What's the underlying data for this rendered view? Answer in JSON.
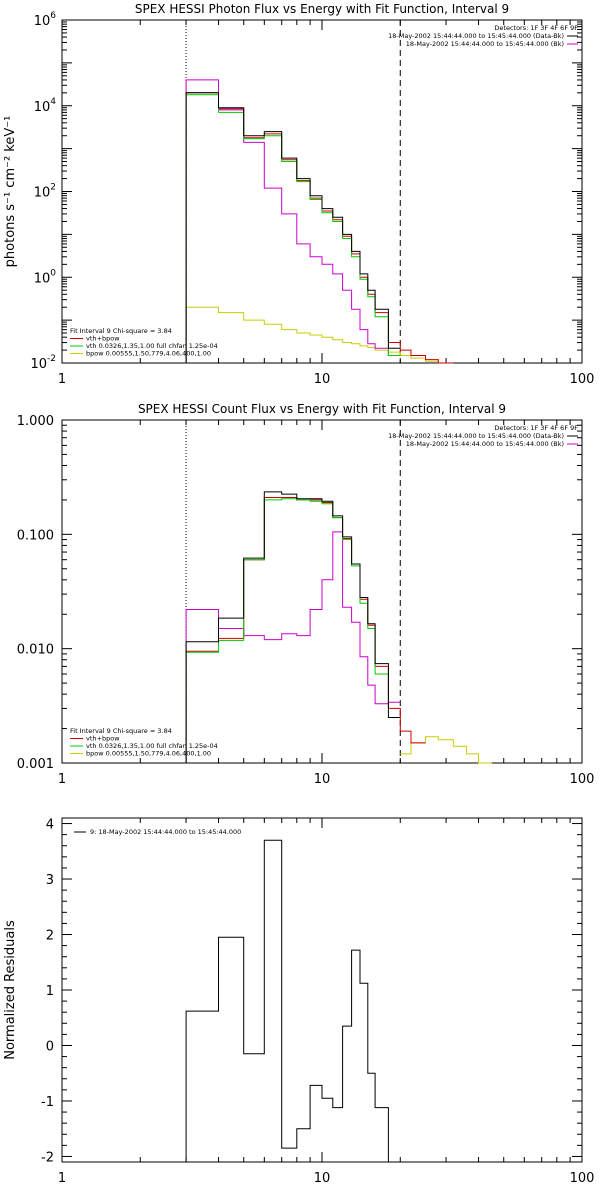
{
  "colors": {
    "background": "#ffffff",
    "axes": "#000000",
    "data": "#000000",
    "total_fit": "#cc0000",
    "vth": "#00cc00",
    "bpow": "#cccc00",
    "background_spectrum": "#cc00cc"
  },
  "chart_data": [
    {
      "type": "line",
      "step": true,
      "xscale": "log",
      "yscale": "log",
      "title": "SPEX HESSI Photon Flux vs Energy with Fit Function, Interval 9",
      "xlabel": "",
      "ylabel": "photons s⁻¹ cm⁻² keV⁻¹",
      "xlim": [
        1,
        100
      ],
      "ylim": [
        0.01,
        1000000
      ],
      "xticks": [
        1,
        10,
        100
      ],
      "yticks": [
        {
          "v": 0.01,
          "b": "10",
          "e": "-2"
        },
        {
          "v": 1,
          "b": "10",
          "e": "0"
        },
        {
          "v": 100,
          "b": "10",
          "e": "2"
        },
        {
          "v": 10000,
          "b": "10",
          "e": "4"
        },
        {
          "v": 1000000,
          "b": "10",
          "e": "6"
        }
      ],
      "vlines": [
        {
          "x": 3,
          "style": "dotted"
        },
        {
          "x": 20,
          "style": "dashed"
        }
      ],
      "header_lines": [
        "Detectors: 1F 3F 4F 6F 9F",
        "18-May-2002 15:44:44.000 to 15:45:44.000 (Data-Bk)",
        "18-May-2002 15:44:44.000 to 15:45:44.000 (Bk)"
      ],
      "fit_lines": [
        "Fit Interval 9   Chi-square = 3.84",
        "vth+bpow",
        "vth 0.0326,1.35,1.00  full chfan 1.25e-04",
        "bpow 0.00555,1.50,779,4.06,400,1.00"
      ],
      "edges": [
        3,
        4,
        5,
        6,
        7,
        8,
        9,
        10,
        11,
        12,
        13,
        14,
        15,
        16,
        18,
        20,
        22,
        25,
        28,
        32
      ],
      "series": [
        {
          "name": "Data-Bk",
          "color": "#000000",
          "values": [
            20000,
            9000,
            2000,
            2500,
            600,
            200,
            80,
            40,
            25,
            10,
            4,
            1.2,
            0.5,
            0.18,
            0.022,
            null,
            null,
            null,
            null
          ]
        },
        {
          "name": "Bk",
          "color": "#cc00cc",
          "values": [
            40000,
            8000,
            1400,
            120,
            30,
            6,
            3,
            2,
            1.2,
            0.5,
            0.18,
            0.06,
            0.028,
            0.022,
            0.015,
            null,
            null,
            null,
            null
          ]
        },
        {
          "color": "#cc0000",
          "values": [
            20000,
            8500,
            1800,
            2200,
            550,
            180,
            70,
            35,
            22,
            9,
            3.5,
            1.0,
            0.4,
            0.15,
            0.03,
            0.02,
            0.015,
            0.012,
            0.01
          ]
        },
        {
          "color": "#00cc00",
          "values": [
            18000,
            7000,
            1700,
            2000,
            500,
            170,
            65,
            32,
            20,
            8,
            3,
            0.9,
            0.35,
            0.12,
            0.015,
            null,
            null,
            null,
            null
          ]
        },
        {
          "color": "#cccc00",
          "values": [
            0.2,
            0.15,
            0.1,
            0.08,
            0.06,
            0.05,
            0.045,
            0.04,
            0.035,
            0.03,
            0.028,
            0.025,
            0.023,
            0.02,
            0.018,
            0.015,
            0.013,
            0.011,
            0.01
          ]
        }
      ],
      "legend": [
        {
          "label": "vth+bpow",
          "color": "#cc0000"
        },
        {
          "label": "vth 0.0326,1.35,1.00  full chfan 1.25e-04",
          "color": "#00cc00"
        },
        {
          "label": "bpow 0.00555,1.50,779,4.06,400,1.00",
          "color": "#cccc00"
        }
      ]
    },
    {
      "type": "line",
      "step": true,
      "xscale": "log",
      "yscale": "log",
      "title": "SPEX HESSI Count Flux vs Energy with Fit Function, Interval 9",
      "xlabel": "",
      "ylabel": "",
      "xlim": [
        1,
        100
      ],
      "ylim": [
        0.001,
        1.0
      ],
      "xticks": [
        1,
        10,
        100
      ],
      "yticks": [
        {
          "v": 0.001,
          "t": "0.001"
        },
        {
          "v": 0.01,
          "t": "0.010"
        },
        {
          "v": 0.1,
          "t": "0.100"
        },
        {
          "v": 1.0,
          "t": "1.000"
        }
      ],
      "vlines": [
        {
          "x": 3,
          "style": "dotted"
        },
        {
          "x": 20,
          "style": "dashed"
        }
      ],
      "header_lines": [
        "Detectors: 1F 3F 4F 6F 9F",
        "18-May-2002 15:44:44.000 to 15:45:44.000 (Data-Bk)",
        "18-May-2002 15:44:44.000 to 15:45:44.000 (Bk)"
      ],
      "fit_lines": [
        "Fit Interval 9   Chi-square = 3.84",
        "vth+bpow",
        "vth 0.0326,1.35,1.00  full chfan 1.25e-04",
        "bpow 0.00555,1.50,779,4.06,400,1.00"
      ],
      "edges": [
        3,
        4,
        5,
        6,
        7,
        8,
        9,
        10,
        11,
        12,
        13,
        14,
        15,
        16,
        18,
        20,
        22,
        25,
        28,
        32,
        36,
        40,
        45
      ],
      "series": [
        {
          "name": "Data-Bk",
          "color": "#000000",
          "values": [
            0.0115,
            0.0185,
            0.062,
            0.235,
            0.225,
            0.205,
            0.205,
            0.195,
            0.145,
            0.095,
            0.055,
            0.028,
            0.0165,
            0.0074,
            0.0025,
            null,
            null,
            null,
            null,
            null,
            null,
            null
          ]
        },
        {
          "name": "Bk",
          "color": "#cc00cc",
          "values": [
            0.022,
            0.015,
            0.013,
            0.012,
            0.0135,
            0.013,
            0.022,
            0.04,
            0.105,
            0.023,
            0.017,
            0.0085,
            0.0048,
            0.0033,
            0.0034,
            null,
            null,
            null,
            null,
            null,
            null,
            null
          ]
        },
        {
          "color": "#cc0000",
          "values": [
            0.0095,
            0.0123,
            0.06,
            0.21,
            0.21,
            0.2,
            0.2,
            0.19,
            0.14,
            0.092,
            0.055,
            0.027,
            0.016,
            0.007,
            0.003,
            0.0019,
            0.0015,
            null,
            null,
            null,
            null,
            null
          ]
        },
        {
          "color": "#00cc00",
          "values": [
            0.0093,
            0.0118,
            0.06,
            0.2,
            0.205,
            0.2,
            0.195,
            0.185,
            0.14,
            0.09,
            0.053,
            0.025,
            0.015,
            0.006,
            null,
            null,
            null,
            null,
            null,
            null,
            null,
            null
          ]
        },
        {
          "color": "#cccc00",
          "values": [
            null,
            null,
            null,
            null,
            null,
            null,
            null,
            null,
            null,
            null,
            null,
            null,
            null,
            null,
            null,
            0.0012,
            0.0015,
            0.0017,
            0.0016,
            0.0014,
            0.0012,
            0.001
          ]
        }
      ],
      "legend": [
        {
          "label": "vth+bpow",
          "color": "#cc0000"
        },
        {
          "label": "vth 0.0326,1.35,1.00  full chfan 1.25e-04",
          "color": "#00cc00"
        },
        {
          "label": "bpow 0.00555,1.50,779,4.06,400,1.00",
          "color": "#cccc00"
        }
      ]
    },
    {
      "type": "line",
      "step": true,
      "xscale": "log",
      "yscale": "linear",
      "title": "",
      "xlabel": "",
      "ylabel": "Normalized Residuals",
      "xlim": [
        1,
        100
      ],
      "ylim": [
        -2.1,
        4.1
      ],
      "xticks": [
        1,
        10,
        100
      ],
      "yticks": [
        {
          "v": -2,
          "t": "-2"
        },
        {
          "v": -1,
          "t": "-1"
        },
        {
          "v": 0,
          "t": "0"
        },
        {
          "v": 1,
          "t": "1"
        },
        {
          "v": 2,
          "t": "2"
        },
        {
          "v": 3,
          "t": "3"
        },
        {
          "v": 4,
          "t": "4"
        }
      ],
      "legend_text": "9: 18-May-2002 15:44:44.000 to 15:45:44.000",
      "edges": [
        3,
        4,
        5,
        6,
        7,
        8,
        9,
        10,
        11,
        12,
        13,
        14,
        15,
        16,
        18,
        20
      ],
      "series": [
        {
          "color": "#000000",
          "values": [
            0.62,
            1.95,
            -0.15,
            3.7,
            -1.85,
            -1.5,
            -0.72,
            -0.95,
            -1.12,
            0.35,
            1.72,
            1.12,
            -0.5,
            -1.12,
            -2.1
          ]
        }
      ]
    }
  ]
}
